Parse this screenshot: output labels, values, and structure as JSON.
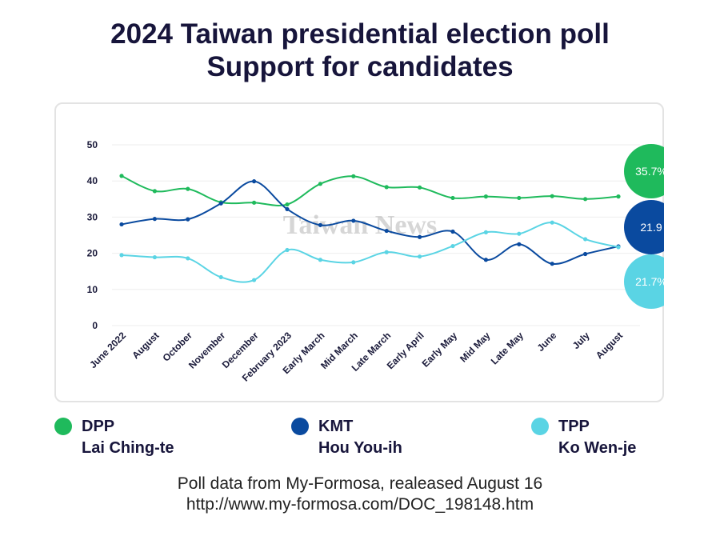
{
  "chart_data": {
    "type": "line",
    "title": "2024 Taiwan presidential election poll",
    "subtitle": "Support for candidates",
    "categories": [
      "June 2022",
      "August",
      "October",
      "November",
      "December",
      "February 2023",
      "Early March",
      "Mid March",
      "Late March",
      "Early April",
      "Early May",
      "Mid May",
      "Late May",
      "June",
      "July",
      "August"
    ],
    "series": [
      {
        "name": "DPP",
        "candidate": "Lai Ching-te",
        "color": "#1fba5c",
        "values": [
          41.4,
          37.2,
          37.8,
          34.1,
          34.0,
          33.5,
          39.2,
          41.3,
          38.3,
          38.2,
          35.3,
          35.7,
          35.3,
          35.8,
          35.0,
          35.7
        ],
        "end_label": "35.7%"
      },
      {
        "name": "KMT",
        "candidate": "Hou You-ih",
        "color": "#0a4a9f",
        "values": [
          28.0,
          29.5,
          29.4,
          33.8,
          39.9,
          32.2,
          27.8,
          29.0,
          26.2,
          24.5,
          26.0,
          18.2,
          22.5,
          17.1,
          19.8,
          21.9
        ],
        "end_label": "21.9"
      },
      {
        "name": "TPP",
        "candidate": "Ko Wen-je",
        "color": "#5ad4e4",
        "values": [
          19.5,
          18.9,
          18.6,
          13.4,
          12.6,
          20.9,
          18.2,
          17.5,
          20.3,
          19.1,
          22.0,
          25.8,
          25.4,
          28.5,
          23.9,
          21.7
        ],
        "end_label": "21.7%"
      }
    ],
    "yticks": [
      0,
      10,
      20,
      30,
      40,
      50
    ],
    "ylim": [
      0,
      50
    ],
    "grid": true,
    "legend_position": "bottom"
  },
  "header": {
    "line1": "2024 Taiwan presidential election poll",
    "line2": "Support for candidates"
  },
  "legend": [
    {
      "party": "DPP",
      "candidate": "Lai Ching-te",
      "color": "#1fba5c"
    },
    {
      "party": "KMT",
      "candidate": "Hou You-ih",
      "color": "#0a4a9f"
    },
    {
      "party": "TPP",
      "candidate": "Ko Wen-je",
      "color": "#5ad4e4"
    }
  ],
  "source": {
    "line1": "Poll data from My-Formosa, realeased August 16",
    "line2": "http://www.my-formosa.com/DOC_198148.htm"
  },
  "watermark": "Taiwan News"
}
